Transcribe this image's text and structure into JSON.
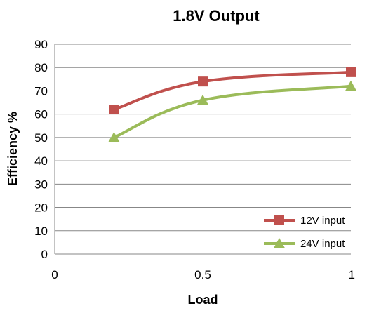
{
  "chart_data": {
    "type": "line",
    "title": "1.8V Output",
    "xlabel": "Load",
    "ylabel": "Efficiency %",
    "xlim": [
      0,
      1
    ],
    "ylim": [
      0,
      90
    ],
    "x_ticks": [
      "0",
      "0.5",
      "1"
    ],
    "y_ticks": [
      "0",
      "10",
      "20",
      "30",
      "40",
      "50",
      "60",
      "70",
      "80",
      "90"
    ],
    "grid": "horizontal",
    "legend_position": "bottom-right",
    "series": [
      {
        "name": "12V input",
        "color": "#c0504d",
        "marker": "square",
        "x": [
          0.2,
          0.5,
          1.0
        ],
        "y": [
          62,
          74,
          78
        ]
      },
      {
        "name": "24V input",
        "color": "#9bbb59",
        "marker": "triangle",
        "x": [
          0.2,
          0.5,
          1.0
        ],
        "y": [
          50,
          66,
          72
        ]
      }
    ]
  }
}
